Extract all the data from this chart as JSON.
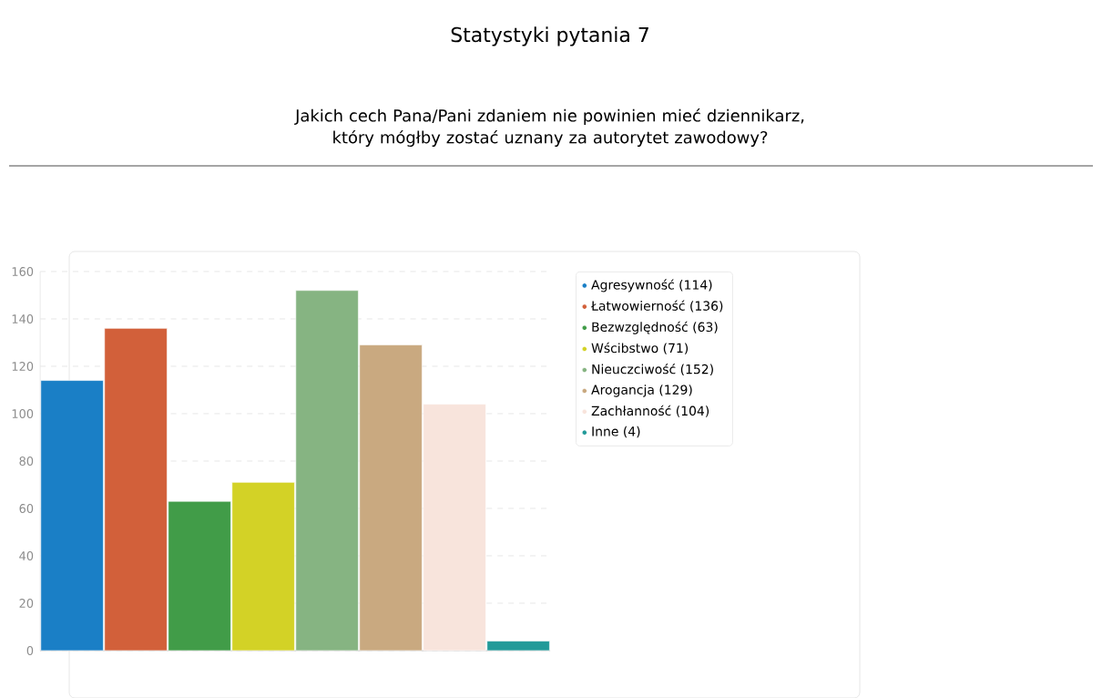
{
  "chart_data": {
    "type": "bar",
    "title": "Statystyki pytania 7",
    "subtitle": "Jakich cech Pana/Pani zdaniem nie powinien mieć dziennikarz, który mógłby zostać uznany za autorytet zawodowy?",
    "categories": [
      null,
      null,
      null,
      null,
      null,
      null,
      null,
      null
    ],
    "series": [
      {
        "name": "Agresywność (114)",
        "color": "#1a7fc6",
        "values": [
          114,
          null,
          null,
          null,
          null,
          null,
          null,
          null
        ]
      },
      {
        "name": "Łatwowierność (136)",
        "color": "#d2603a",
        "values": [
          null,
          136,
          null,
          null,
          null,
          null,
          null,
          null
        ]
      },
      {
        "name": "Bezwzględność (63)",
        "color": "#419c48",
        "values": [
          null,
          null,
          63,
          null,
          null,
          null,
          null,
          null
        ]
      },
      {
        "name": "Wścibstwo (71)",
        "color": "#d3d226",
        "values": [
          null,
          null,
          null,
          71,
          null,
          null,
          null,
          null
        ]
      },
      {
        "name": "Nieuczciwość (152)",
        "color": "#86b482",
        "values": [
          null,
          null,
          null,
          null,
          152,
          null,
          null,
          null
        ]
      },
      {
        "name": "Arogancja (129)",
        "color": "#c9a980",
        "values": [
          null,
          null,
          null,
          null,
          null,
          129,
          null,
          null
        ]
      },
      {
        "name": "Zachłanność (104)",
        "color": "#f8e4dc",
        "values": [
          null,
          null,
          null,
          null,
          null,
          null,
          104,
          null
        ]
      },
      {
        "name": "Inne (4)",
        "color": "#229a99",
        "values": [
          null,
          null,
          null,
          null,
          null,
          null,
          null,
          4
        ]
      }
    ],
    "ylim": [
      0,
      160
    ],
    "yticks": [
      0,
      20,
      40,
      60,
      80,
      100,
      120,
      140,
      160
    ],
    "grid": "y",
    "legend": "top right"
  }
}
